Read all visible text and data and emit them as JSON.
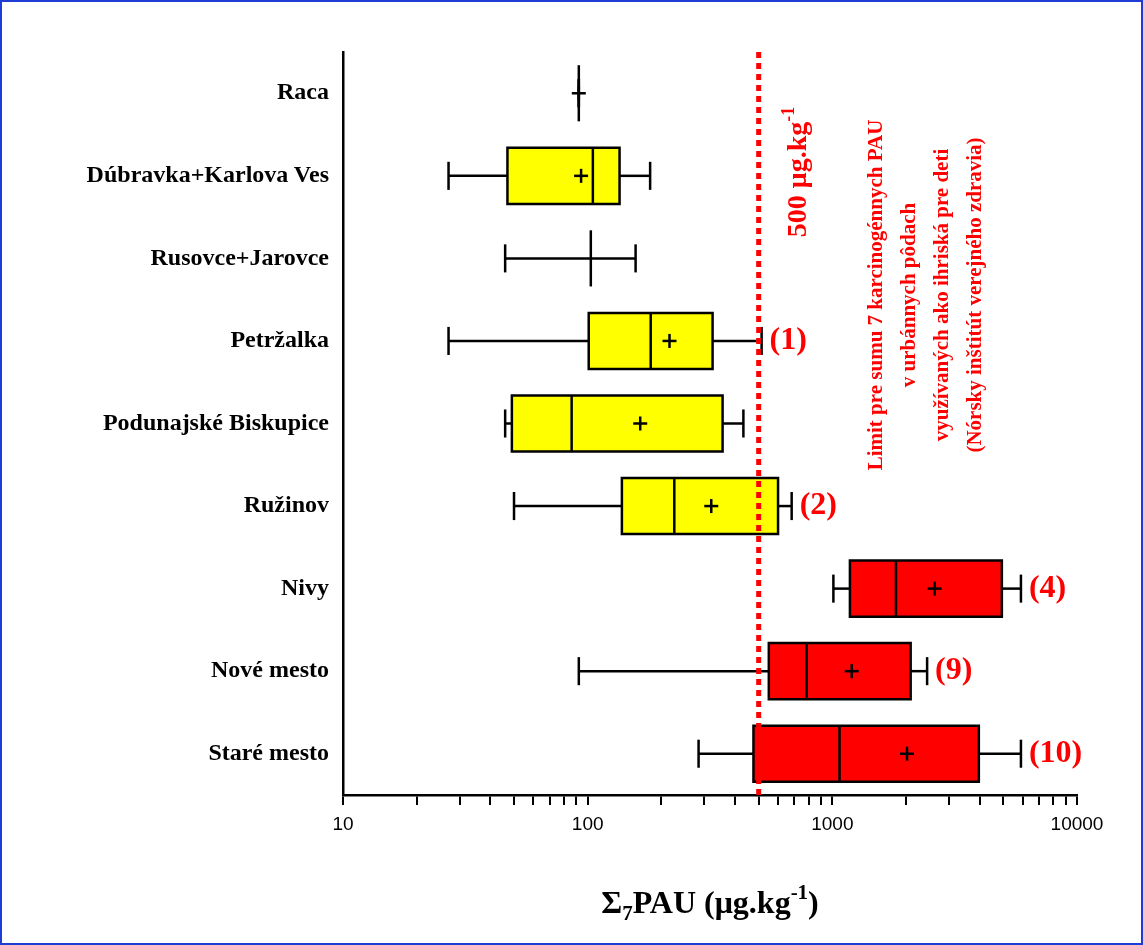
{
  "chart_data": {
    "type": "box",
    "orientation": "horizontal",
    "log": "x",
    "categories": [
      "Raca",
      "Dúbravka+Karlova Ves",
      "Rusovce+Jarovce",
      "Petržalka",
      "Podunajské Biskupice",
      "Ružinov",
      "Nivy",
      "Nové mesto",
      "Staré mesto"
    ],
    "boxes": [
      {
        "low": 92,
        "q1": 92,
        "median": 92,
        "q3": 92,
        "high": 92,
        "mean": 92
      },
      {
        "low": 27,
        "q1": 47,
        "median": 105,
        "q3": 135,
        "high": 180,
        "mean": 94
      },
      {
        "low": 46,
        "q1": 103,
        "median": 103,
        "q3": 103,
        "high": 157
      },
      {
        "low": 27,
        "q1": 101,
        "median": 181,
        "q3": 324,
        "high": 514,
        "mean": 216
      },
      {
        "low": 46,
        "q1": 49,
        "median": 86,
        "q3": 356,
        "high": 433,
        "mean": 164
      },
      {
        "low": 50,
        "q1": 138,
        "median": 226,
        "q3": 600,
        "high": 682,
        "mean": 320
      },
      {
        "low": 1010,
        "q1": 1180,
        "median": 1820,
        "q3": 4930,
        "high": 5900,
        "mean": 2620
      },
      {
        "low": 92,
        "q1": 550,
        "median": 785,
        "q3": 2090,
        "high": 2440,
        "mean": 1200
      },
      {
        "low": 284,
        "q1": 476,
        "median": 1070,
        "q3": 3970,
        "high": 5900,
        "mean": 2020
      }
    ],
    "colors": [
      "#000000",
      "#ffff00",
      "#000000",
      "#ffff00",
      "#ffff00",
      "#ffff00",
      "#ff0000",
      "#ff0000",
      "#ff0000"
    ],
    "xlim": [
      10,
      10000
    ],
    "xticks": [
      10,
      {
        "value": 20,
        "label": null
      },
      {
        "value": 30,
        "label": null
      },
      {
        "value": 40,
        "label": null
      },
      {
        "value": 50,
        "label": null
      },
      {
        "value": 60,
        "label": null
      },
      {
        "value": 70,
        "label": null
      },
      {
        "value": 80,
        "label": null
      },
      {
        "value": 90,
        "label": null
      },
      100,
      {
        "value": 200,
        "label": null
      },
      {
        "value": 300,
        "label": null
      },
      {
        "value": 400,
        "label": null
      },
      {
        "value": 500,
        "label": null
      },
      {
        "value": 600,
        "label": null
      },
      {
        "value": 700,
        "label": null
      },
      {
        "value": 800,
        "label": null
      },
      {
        "value": 900,
        "label": null
      },
      1000,
      {
        "value": 2000,
        "label": null
      },
      {
        "value": 3000,
        "label": null
      },
      {
        "value": 4000,
        "label": null
      },
      {
        "value": 5000,
        "label": null
      },
      {
        "value": 6000,
        "label": null
      },
      {
        "value": 7000,
        "label": null
      },
      {
        "value": 8000,
        "label": null
      },
      {
        "value": 9000,
        "label": null
      },
      10000
    ],
    "xlabel": "Σ$_{7}$PAU (μg.kg$^{-1}$)",
    "ref_lines": [
      {
        "axis": "x",
        "value": 500,
        "label": "500 μg.kg$^{-1}$",
        "color": "#ff0000",
        "line_style": "dotted"
      }
    ],
    "annotations": [
      {
        "text": "(1)",
        "x": 514,
        "y": "Petržalka"
      },
      {
        "text": "(2)",
        "x": 682,
        "y": "Ružinov"
      },
      {
        "text": "(4)",
        "x": 5900,
        "y": "Nivy"
      },
      {
        "text": "(9)",
        "x": 2440,
        "y": "Nové mesto"
      },
      {
        "text": "(10)",
        "x": 5900,
        "y": "Staré mesto"
      },
      "Limit pre sumu 7 karcinogénnych PAU\nv urbánnych pôdach\nvyužívaných ako ihriská pre deti\n(Nórsky inštitút verejného zdravia)"
    ],
    "grid": false,
    "legend": false
  }
}
